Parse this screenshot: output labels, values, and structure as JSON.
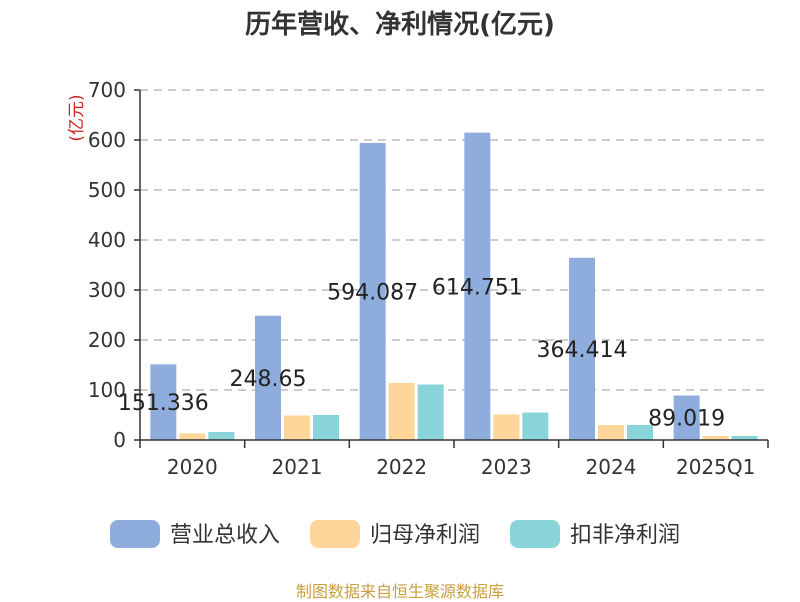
{
  "chart_data": {
    "type": "bar",
    "title": "历年营收、净利情况(亿元)",
    "unit_label": "(亿元)",
    "categories": [
      "2020",
      "2021",
      "2022",
      "2023",
      "2024",
      "2025Q1"
    ],
    "series": [
      {
        "name": "营业总收入",
        "color": "#8eaddc",
        "values": [
          151.336,
          248.65,
          594.087,
          614.751,
          364.414,
          89.019
        ]
      },
      {
        "name": "归母净利润",
        "color": "#ffd699",
        "values": [
          13,
          49,
          114,
          51,
          30,
          8
        ]
      },
      {
        "name": "扣非净利润",
        "color": "#88d4d8",
        "values": [
          16,
          50,
          111,
          55,
          30,
          8
        ]
      }
    ],
    "data_labels": [
      "151.336",
      "248.65",
      "594.087",
      "614.751",
      "364.414",
      "89.019"
    ],
    "y_ticks": [
      "0",
      "100",
      "200",
      "300",
      "400",
      "500",
      "600",
      "700"
    ],
    "ylim": [
      0,
      700
    ],
    "grid": true,
    "legend_position": "bottom"
  },
  "source_note": "制图数据来自恒生聚源数据库"
}
